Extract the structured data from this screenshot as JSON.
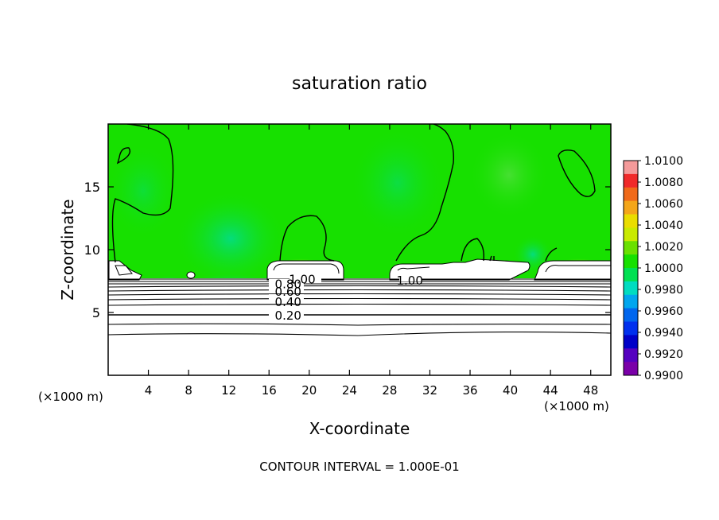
{
  "chart_data": {
    "type": "heatmap",
    "title": "saturation ratio",
    "xlabel": "X-coordinate",
    "ylabel": "Z-coordinate",
    "x_unit": "(×1000 m)",
    "xlim": [
      0,
      50
    ],
    "ylim": [
      0,
      20
    ],
    "x_ticks": [
      4,
      8,
      12,
      16,
      20,
      24,
      28,
      32,
      36,
      40,
      44,
      48
    ],
    "y_ticks": [
      5,
      10,
      15
    ],
    "contour_labels": [
      {
        "text": "0.20",
        "x": 17.9,
        "z": 4.8
      },
      {
        "text": "0.40",
        "x": 17.9,
        "z": 5.9
      },
      {
        "text": "0.60",
        "x": 17.9,
        "z": 6.7
      },
      {
        "text": "0.80",
        "x": 17.9,
        "z": 7.3
      },
      {
        "text": "1.00",
        "x": 19.3,
        "z": 7.7
      },
      {
        "text": "1.00",
        "x": 30.0,
        "z": 7.6
      }
    ],
    "colorbar": {
      "labels": [
        "1.0100",
        "1.0080",
        "1.0060",
        "1.0040",
        "1.0020",
        "1.0000",
        "0.9980",
        "0.9960",
        "0.9940",
        "0.9920",
        "0.9900"
      ],
      "colors": [
        "#f49a9a",
        "#f02a2a",
        "#f06a1a",
        "#f4a61a",
        "#eadd00",
        "#c9ea00",
        "#6ae000",
        "#17e000",
        "#00e052",
        "#00dcc0",
        "#00a6ee",
        "#0066ee",
        "#0030ee",
        "#0000c8",
        "#5500c0",
        "#7a00a8"
      ],
      "range": [
        0.99,
        1.01
      ]
    },
    "footer": "CONTOUR INTERVAL = 1.000E-01"
  }
}
